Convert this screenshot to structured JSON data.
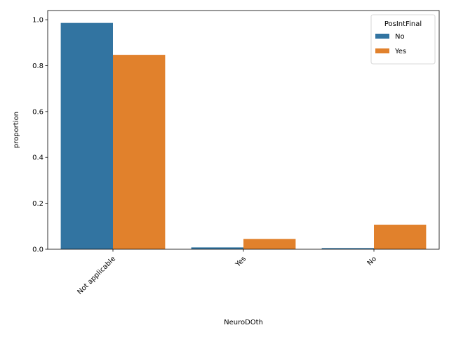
{
  "chart_data": {
    "type": "bar",
    "xlabel": "NeuroDOth",
    "ylabel": "proportion",
    "categories": [
      "Not applicable",
      "Yes",
      "No"
    ],
    "series": [
      {
        "name": "No",
        "color": "#3274a1",
        "values": [
          0.986,
          0.008,
          0.005
        ]
      },
      {
        "name": "Yes",
        "color": "#e1812c",
        "values": [
          0.847,
          0.045,
          0.107
        ]
      }
    ],
    "ylim": [
      0,
      1.04
    ],
    "yticks": [
      0.0,
      0.2,
      0.4,
      0.6,
      0.8,
      1.0
    ],
    "ytick_labels": [
      "0.0",
      "0.2",
      "0.4",
      "0.6",
      "0.8",
      "1.0"
    ],
    "grid": false,
    "legend": {
      "title": "PosIntFinal",
      "placement": "top-right"
    }
  }
}
